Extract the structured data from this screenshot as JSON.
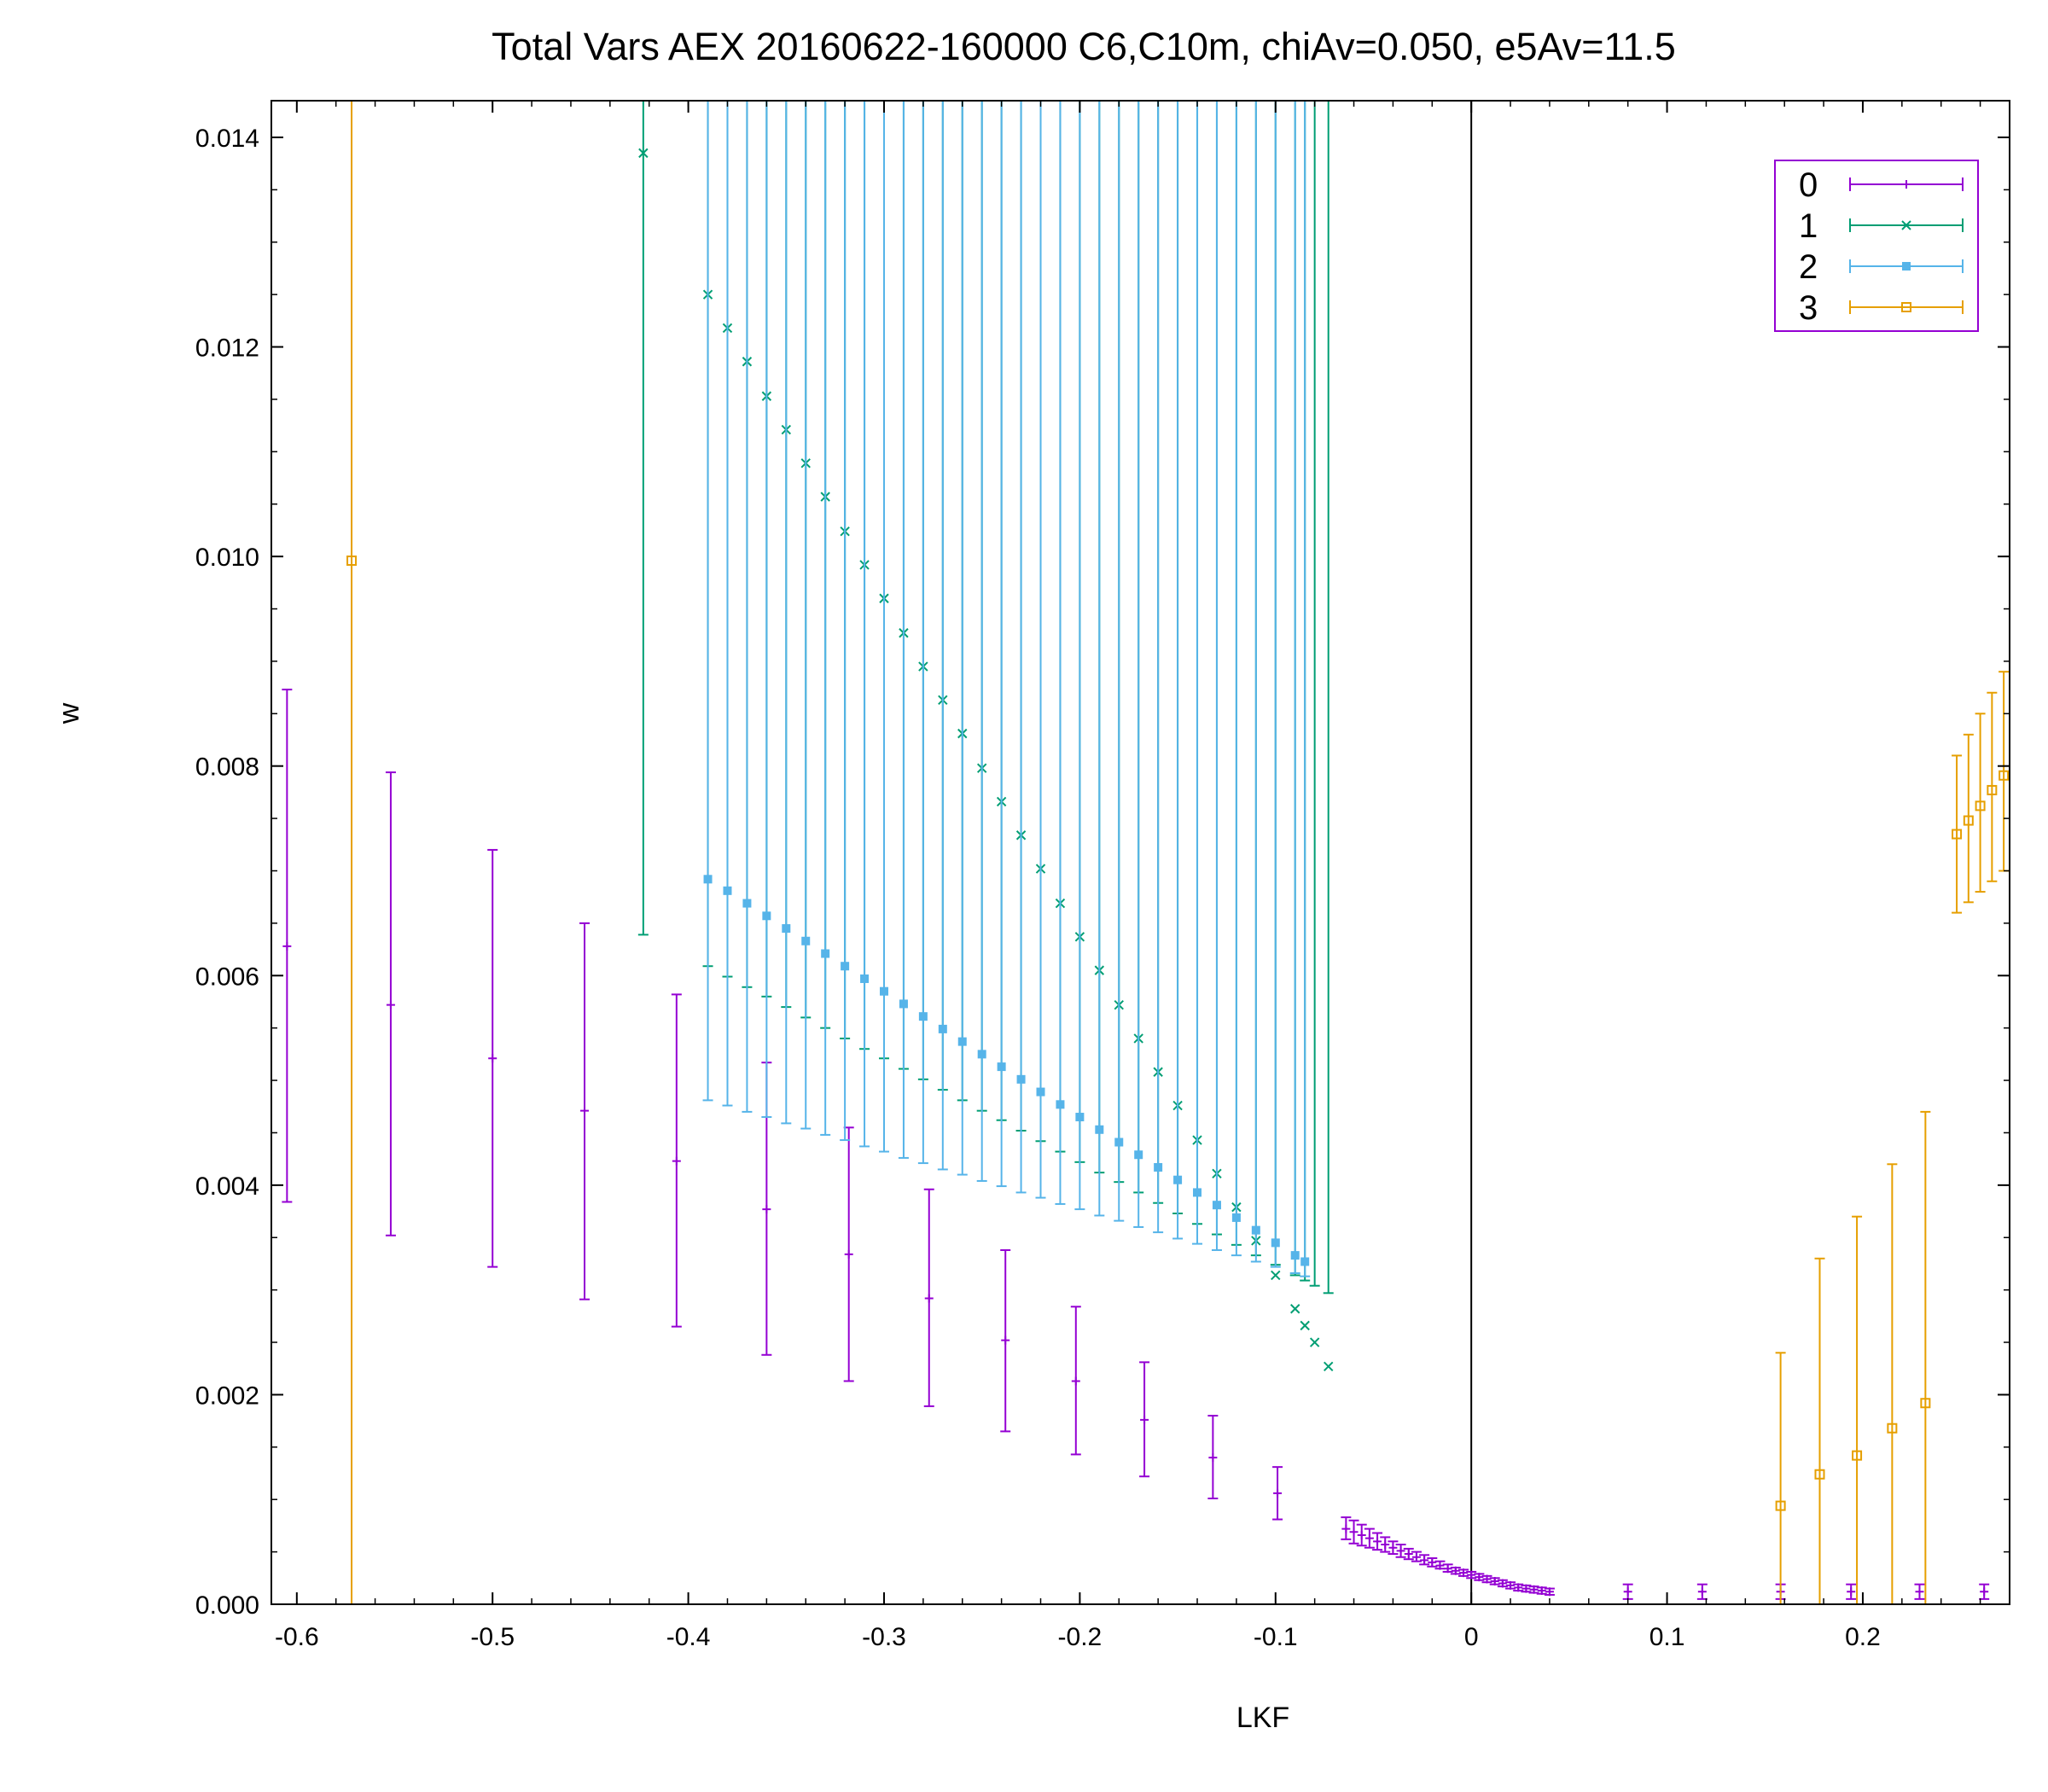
{
  "chart_data": {
    "type": "scatter",
    "title": "Total Vars  AEX 20160622-160000  C6,C10m, chiAv=0.050, e5Av=11.5",
    "xlabel": "LKF",
    "ylabel": "w",
    "xlim": [
      -0.613,
      0.275
    ],
    "ylim": [
      0.0,
      0.01435
    ],
    "x_ticks": [
      -0.6,
      -0.5,
      -0.4,
      -0.3,
      -0.2,
      -0.1,
      0,
      0.1,
      0.2
    ],
    "x_tick_labels": [
      "-0.6",
      "-0.5",
      "-0.4",
      "-0.3",
      "-0.2",
      "-0.1",
      "0",
      "0.1",
      "0.2"
    ],
    "y_ticks": [
      0.0,
      0.002,
      0.004,
      0.006,
      0.008,
      0.01,
      0.012,
      0.014
    ],
    "y_tick_labels": [
      "0.000",
      "0.002",
      "0.004",
      "0.006",
      "0.008",
      "0.010",
      "0.012",
      "0.014"
    ],
    "zero_line_x": 0,
    "grid": false,
    "legend_position": "top-right",
    "legend_border_color": "#9400d3",
    "series": [
      {
        "name": "0",
        "color": "#9400d3",
        "marker": "plus",
        "points": [
          {
            "x": -0.605,
            "y": 0.00628,
            "lo": 0.00384,
            "hi": 0.00873
          },
          {
            "x": -0.552,
            "y": 0.00572,
            "lo": 0.00352,
            "hi": 0.00794
          },
          {
            "x": -0.5,
            "y": 0.00521,
            "lo": 0.00322,
            "hi": 0.0072
          },
          {
            "x": -0.453,
            "y": 0.00471,
            "lo": 0.00291,
            "hi": 0.0065
          },
          {
            "x": -0.406,
            "y": 0.00423,
            "lo": 0.00265,
            "hi": 0.00582
          },
          {
            "x": -0.36,
            "y": 0.00377,
            "lo": 0.00238,
            "hi": 0.00517
          },
          {
            "x": -0.318,
            "y": 0.00334,
            "lo": 0.00213,
            "hi": 0.00455
          },
          {
            "x": -0.277,
            "y": 0.00292,
            "lo": 0.00189,
            "hi": 0.00396
          },
          {
            "x": -0.238,
            "y": 0.00252,
            "lo": 0.00165,
            "hi": 0.00338
          },
          {
            "x": -0.202,
            "y": 0.00213,
            "lo": 0.00143,
            "hi": 0.00284
          },
          {
            "x": -0.167,
            "y": 0.00176,
            "lo": 0.00122,
            "hi": 0.00231
          },
          {
            "x": -0.132,
            "y": 0.0014,
            "lo": 0.00101,
            "hi": 0.0018
          },
          {
            "x": -0.099,
            "y": 0.00106,
            "lo": 0.00081,
            "hi": 0.00131
          },
          {
            "x": -0.064,
            "y": 0.00072,
            "lo": 0.00062,
            "hi": 0.00083
          },
          {
            "x": -0.06,
            "y": 0.00069,
            "lo": 0.00058,
            "hi": 0.0008
          },
          {
            "x": -0.056,
            "y": 0.00066,
            "lo": 0.00056,
            "hi": 0.00076
          },
          {
            "x": -0.052,
            "y": 0.00063,
            "lo": 0.00054,
            "hi": 0.00072
          },
          {
            "x": -0.048,
            "y": 0.0006,
            "lo": 0.00052,
            "hi": 0.00068
          },
          {
            "x": -0.044,
            "y": 0.00057,
            "lo": 0.0005,
            "hi": 0.00064
          },
          {
            "x": -0.04,
            "y": 0.00054,
            "lo": 0.00048,
            "hi": 0.0006
          },
          {
            "x": -0.036,
            "y": 0.00051,
            "lo": 0.00045,
            "hi": 0.00057
          },
          {
            "x": -0.032,
            "y": 0.00048,
            "lo": 0.00043,
            "hi": 0.00053
          },
          {
            "x": -0.028,
            "y": 0.00045,
            "lo": 0.00041,
            "hi": 0.0005
          },
          {
            "x": -0.024,
            "y": 0.00042,
            "lo": 0.00038,
            "hi": 0.00047
          },
          {
            "x": -0.02,
            "y": 0.0004,
            "lo": 0.00036,
            "hi": 0.00044
          },
          {
            "x": -0.016,
            "y": 0.00037,
            "lo": 0.00034,
            "hi": 0.00041
          },
          {
            "x": -0.012,
            "y": 0.00034,
            "lo": 0.00031,
            "hi": 0.00038
          },
          {
            "x": -0.008,
            "y": 0.00032,
            "lo": 0.00029,
            "hi": 0.00035
          },
          {
            "x": -0.004,
            "y": 0.0003,
            "lo": 0.00027,
            "hi": 0.00033
          },
          {
            "x": 0.0,
            "y": 0.00028,
            "lo": 0.00025,
            "hi": 0.00031
          },
          {
            "x": 0.004,
            "y": 0.00026,
            "lo": 0.00023,
            "hi": 0.00029
          },
          {
            "x": 0.008,
            "y": 0.00024,
            "lo": 0.00021,
            "hi": 0.00027
          },
          {
            "x": 0.012,
            "y": 0.00022,
            "lo": 0.00019,
            "hi": 0.00025
          },
          {
            "x": 0.016,
            "y": 0.0002,
            "lo": 0.00017,
            "hi": 0.00023
          },
          {
            "x": 0.02,
            "y": 0.00018,
            "lo": 0.00015,
            "hi": 0.00021
          },
          {
            "x": 0.024,
            "y": 0.00016,
            "lo": 0.00013,
            "hi": 0.00019
          },
          {
            "x": 0.028,
            "y": 0.00015,
            "lo": 0.00012,
            "hi": 0.00018
          },
          {
            "x": 0.032,
            "y": 0.00014,
            "lo": 0.00011,
            "hi": 0.00017
          },
          {
            "x": 0.036,
            "y": 0.00013,
            "lo": 0.0001,
            "hi": 0.00016
          },
          {
            "x": 0.04,
            "y": 0.00012,
            "lo": 9e-05,
            "hi": 0.00015
          },
          {
            "x": 0.08,
            "y": 0.00012,
            "lo": 5e-05,
            "hi": 0.00019
          },
          {
            "x": 0.118,
            "y": 0.00012,
            "lo": 5e-05,
            "hi": 0.00019
          },
          {
            "x": 0.158,
            "y": 0.00012,
            "lo": 5e-05,
            "hi": 0.00019
          },
          {
            "x": 0.194,
            "y": 0.00012,
            "lo": 5e-05,
            "hi": 0.00019
          },
          {
            "x": 0.229,
            "y": 0.00012,
            "lo": 5e-05,
            "hi": 0.00019
          },
          {
            "x": 0.262,
            "y": 0.00012,
            "lo": 5e-05,
            "hi": 0.00019
          }
        ]
      },
      {
        "name": "1",
        "color": "#009e73",
        "marker": "cross",
        "points": [
          {
            "x": -0.423,
            "y": 0.01385,
            "lo": 0.00639,
            "hi": 0.0144
          },
          {
            "x": -0.39,
            "y": 0.0125,
            "lo": 0.00609,
            "hi": 0.0144
          },
          {
            "x": -0.38,
            "y": 0.01218,
            "lo": 0.00599,
            "hi": 0.0144
          },
          {
            "x": -0.37,
            "y": 0.01186,
            "lo": 0.00589,
            "hi": 0.0144
          },
          {
            "x": -0.36,
            "y": 0.01153,
            "lo": 0.0058,
            "hi": 0.0144
          },
          {
            "x": -0.35,
            "y": 0.01121,
            "lo": 0.0057,
            "hi": 0.0144
          },
          {
            "x": -0.34,
            "y": 0.01089,
            "lo": 0.0056,
            "hi": 0.0144
          },
          {
            "x": -0.33,
            "y": 0.01057,
            "lo": 0.0055,
            "hi": 0.0144
          },
          {
            "x": -0.32,
            "y": 0.01024,
            "lo": 0.0054,
            "hi": 0.0144
          },
          {
            "x": -0.31,
            "y": 0.00992,
            "lo": 0.0053,
            "hi": 0.0144
          },
          {
            "x": -0.3,
            "y": 0.0096,
            "lo": 0.00521,
            "hi": 0.0144
          },
          {
            "x": -0.29,
            "y": 0.00927,
            "lo": 0.00511,
            "hi": 0.0144
          },
          {
            "x": -0.28,
            "y": 0.00895,
            "lo": 0.00501,
            "hi": 0.0144
          },
          {
            "x": -0.27,
            "y": 0.00863,
            "lo": 0.00491,
            "hi": 0.0144
          },
          {
            "x": -0.26,
            "y": 0.00831,
            "lo": 0.00481,
            "hi": 0.0144
          },
          {
            "x": -0.25,
            "y": 0.00798,
            "lo": 0.00471,
            "hi": 0.0144
          },
          {
            "x": -0.24,
            "y": 0.00766,
            "lo": 0.00462,
            "hi": 0.0144
          },
          {
            "x": -0.23,
            "y": 0.00734,
            "lo": 0.00452,
            "hi": 0.0144
          },
          {
            "x": -0.22,
            "y": 0.00702,
            "lo": 0.00442,
            "hi": 0.0144
          },
          {
            "x": -0.21,
            "y": 0.00669,
            "lo": 0.00432,
            "hi": 0.0144
          },
          {
            "x": -0.2,
            "y": 0.00637,
            "lo": 0.00422,
            "hi": 0.0144
          },
          {
            "x": -0.19,
            "y": 0.00605,
            "lo": 0.00412,
            "hi": 0.0144
          },
          {
            "x": -0.18,
            "y": 0.00572,
            "lo": 0.00403,
            "hi": 0.0144
          },
          {
            "x": -0.17,
            "y": 0.0054,
            "lo": 0.00393,
            "hi": 0.0144
          },
          {
            "x": -0.16,
            "y": 0.00508,
            "lo": 0.00383,
            "hi": 0.0144
          },
          {
            "x": -0.15,
            "y": 0.00476,
            "lo": 0.00373,
            "hi": 0.0144
          },
          {
            "x": -0.14,
            "y": 0.00443,
            "lo": 0.00363,
            "hi": 0.0144
          },
          {
            "x": -0.13,
            "y": 0.00411,
            "lo": 0.00353,
            "hi": 0.0144
          },
          {
            "x": -0.12,
            "y": 0.00379,
            "lo": 0.00343,
            "hi": 0.0144
          },
          {
            "x": -0.11,
            "y": 0.00347,
            "lo": 0.00333,
            "hi": 0.0144
          },
          {
            "x": -0.1,
            "y": 0.00314,
            "lo": 0.00324,
            "hi": 0.0144
          },
          {
            "x": -0.09,
            "y": 0.00282,
            "lo": 0.00314,
            "hi": 0.0144
          },
          {
            "x": -0.085,
            "y": 0.00266,
            "lo": 0.00309,
            "hi": 0.0144
          },
          {
            "x": -0.08,
            "y": 0.0025,
            "lo": 0.00304,
            "hi": 0.0144
          },
          {
            "x": -0.073,
            "y": 0.00227,
            "lo": 0.00297,
            "hi": 0.0144
          }
        ]
      },
      {
        "name": "2",
        "color": "#56b4e9",
        "marker": "square-filled",
        "points": [
          {
            "x": -0.39,
            "y": 0.00692,
            "lo": 0.00481,
            "hi": 0.0144
          },
          {
            "x": -0.38,
            "y": 0.00681,
            "lo": 0.00476,
            "hi": 0.0144
          },
          {
            "x": -0.37,
            "y": 0.00669,
            "lo": 0.0047,
            "hi": 0.0144
          },
          {
            "x": -0.36,
            "y": 0.00657,
            "lo": 0.00465,
            "hi": 0.0144
          },
          {
            "x": -0.35,
            "y": 0.00645,
            "lo": 0.00459,
            "hi": 0.0144
          },
          {
            "x": -0.34,
            "y": 0.00633,
            "lo": 0.00454,
            "hi": 0.0144
          },
          {
            "x": -0.33,
            "y": 0.00621,
            "lo": 0.00448,
            "hi": 0.0144
          },
          {
            "x": -0.32,
            "y": 0.00609,
            "lo": 0.00443,
            "hi": 0.0144
          },
          {
            "x": -0.31,
            "y": 0.00597,
            "lo": 0.00437,
            "hi": 0.0144
          },
          {
            "x": -0.3,
            "y": 0.00585,
            "lo": 0.00432,
            "hi": 0.0144
          },
          {
            "x": -0.29,
            "y": 0.00573,
            "lo": 0.00426,
            "hi": 0.0144
          },
          {
            "x": -0.28,
            "y": 0.00561,
            "lo": 0.00421,
            "hi": 0.0144
          },
          {
            "x": -0.27,
            "y": 0.00549,
            "lo": 0.00415,
            "hi": 0.0144
          },
          {
            "x": -0.26,
            "y": 0.00537,
            "lo": 0.0041,
            "hi": 0.0144
          },
          {
            "x": -0.25,
            "y": 0.00525,
            "lo": 0.00404,
            "hi": 0.0144
          },
          {
            "x": -0.24,
            "y": 0.00513,
            "lo": 0.00399,
            "hi": 0.0144
          },
          {
            "x": -0.23,
            "y": 0.00501,
            "lo": 0.00393,
            "hi": 0.0144
          },
          {
            "x": -0.22,
            "y": 0.00489,
            "lo": 0.00388,
            "hi": 0.0144
          },
          {
            "x": -0.21,
            "y": 0.00477,
            "lo": 0.00382,
            "hi": 0.0144
          },
          {
            "x": -0.2,
            "y": 0.00465,
            "lo": 0.00377,
            "hi": 0.0144
          },
          {
            "x": -0.19,
            "y": 0.00453,
            "lo": 0.00371,
            "hi": 0.0144
          },
          {
            "x": -0.18,
            "y": 0.00441,
            "lo": 0.00366,
            "hi": 0.0144
          },
          {
            "x": -0.17,
            "y": 0.00429,
            "lo": 0.0036,
            "hi": 0.0144
          },
          {
            "x": -0.16,
            "y": 0.00417,
            "lo": 0.00355,
            "hi": 0.0144
          },
          {
            "x": -0.15,
            "y": 0.00405,
            "lo": 0.00349,
            "hi": 0.0144
          },
          {
            "x": -0.14,
            "y": 0.00393,
            "lo": 0.00344,
            "hi": 0.0144
          },
          {
            "x": -0.13,
            "y": 0.00381,
            "lo": 0.00338,
            "hi": 0.0144
          },
          {
            "x": -0.12,
            "y": 0.00369,
            "lo": 0.00333,
            "hi": 0.0144
          },
          {
            "x": -0.11,
            "y": 0.00357,
            "lo": 0.00327,
            "hi": 0.0144
          },
          {
            "x": -0.1,
            "y": 0.00345,
            "lo": 0.00322,
            "hi": 0.0144
          },
          {
            "x": -0.09,
            "y": 0.00333,
            "lo": 0.00316,
            "hi": 0.0144
          },
          {
            "x": -0.085,
            "y": 0.00327,
            "lo": 0.00313,
            "hi": 0.0144
          }
        ]
      },
      {
        "name": "3",
        "color": "#e69f00",
        "marker": "square-open",
        "points": [
          {
            "x": -0.572,
            "y": 0.00996,
            "lo": 0.0,
            "hi": 0.0144
          },
          {
            "x": 0.158,
            "y": 0.00094,
            "lo": 0.0,
            "hi": 0.0024
          },
          {
            "x": 0.178,
            "y": 0.00124,
            "lo": 0.0,
            "hi": 0.0033
          },
          {
            "x": 0.197,
            "y": 0.00142,
            "lo": 0.0,
            "hi": 0.0037
          },
          {
            "x": 0.215,
            "y": 0.00168,
            "lo": 0.0,
            "hi": 0.0042
          },
          {
            "x": 0.232,
            "y": 0.00192,
            "lo": 0.0,
            "hi": 0.0047
          },
          {
            "x": 0.248,
            "y": 0.00735,
            "lo": 0.0066,
            "hi": 0.0081
          },
          {
            "x": 0.254,
            "y": 0.00748,
            "lo": 0.0067,
            "hi": 0.0083
          },
          {
            "x": 0.26,
            "y": 0.00762,
            "lo": 0.0068,
            "hi": 0.0085
          },
          {
            "x": 0.266,
            "y": 0.00777,
            "lo": 0.0069,
            "hi": 0.0087
          },
          {
            "x": 0.272,
            "y": 0.00791,
            "lo": 0.007,
            "hi": 0.0089
          }
        ]
      }
    ]
  }
}
